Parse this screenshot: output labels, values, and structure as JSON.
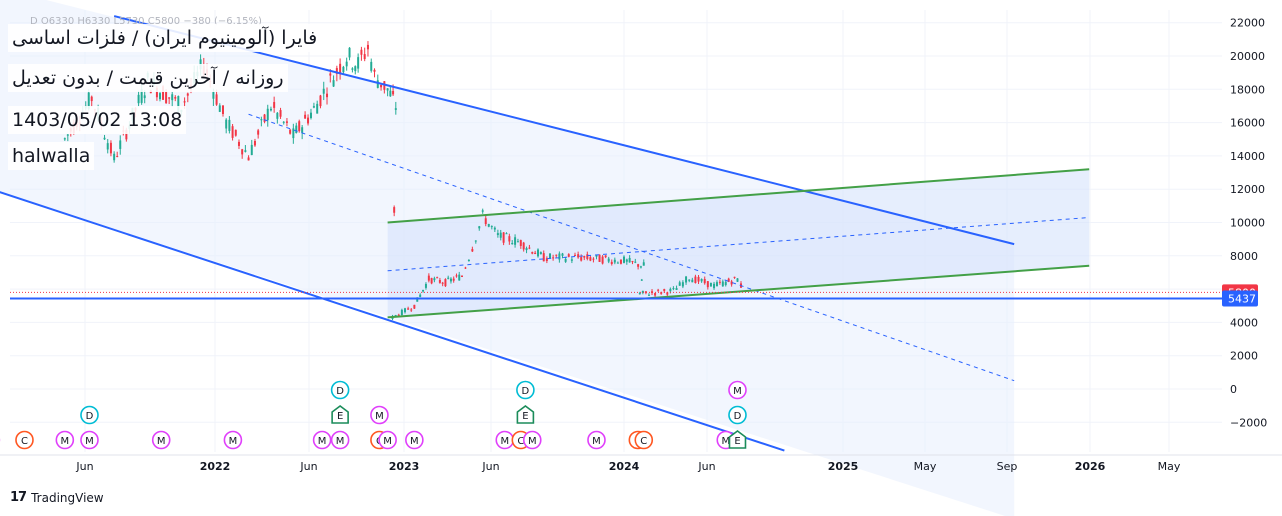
{
  "header": {
    "ohlc_text": "D O6330 H6330 L5730 C5800 −380 (−6.15%)",
    "title": "فایرا (آلومینیوم ایران) / فلزات اساسی",
    "subtitle": "روزانه / آخرین قیمت / بدون تعدیل",
    "datetime": "1403/05/02 13:08",
    "author": "halwalla"
  },
  "footer": {
    "brand": "TradingView"
  },
  "colors": {
    "blue_channel": "#2962ff",
    "green_channel": "#43a047",
    "channel_fill": "#e8eefd",
    "up": "#22ab94",
    "down": "#f23645",
    "price_label": "#f23645",
    "line_label": "#2962ff"
  },
  "chart_data": {
    "type": "candlestick",
    "y_axis": {
      "ticks": [
        22000,
        20000,
        18000,
        16000,
        14000,
        12000,
        10000,
        8000,
        6000,
        4000,
        2000,
        0,
        -2000
      ],
      "range": [
        -3700,
        22500
      ]
    },
    "x_axis": {
      "ticks": [
        "Jun",
        "2022",
        "Jun",
        "2023",
        "Jun",
        "2024",
        "Jun",
        "2025",
        "May",
        "Sep",
        "2026",
        "May"
      ]
    },
    "price_labels": [
      {
        "value": 5800,
        "label": "5800",
        "kind": "last-price"
      },
      {
        "value": 5437,
        "label": "5437",
        "kind": "horizontal-line"
      }
    ],
    "price_path": [
      {
        "t": 2021.33,
        "p": 15000
      },
      {
        "t": 2021.45,
        "p": 17500
      },
      {
        "t": 2021.55,
        "p": 13800
      },
      {
        "t": 2021.7,
        "p": 18500
      },
      {
        "t": 2021.85,
        "p": 17000
      },
      {
        "t": 2021.95,
        "p": 19500
      },
      {
        "t": 2022.05,
        "p": 16000
      },
      {
        "t": 2022.15,
        "p": 14000
      },
      {
        "t": 2022.25,
        "p": 17000
      },
      {
        "t": 2022.35,
        "p": 15200
      },
      {
        "t": 2022.45,
        "p": 16800
      },
      {
        "t": 2022.55,
        "p": 18500
      },
      {
        "t": 2022.65,
        "p": 20000
      },
      {
        "t": 2022.72,
        "p": 19500
      },
      {
        "t": 2022.78,
        "p": 20500
      },
      {
        "t": 2022.82,
        "p": 18800
      },
      {
        "t": 2022.9,
        "p": 18000
      },
      {
        "t": 2022.95,
        "p": 17000
      },
      {
        "t": 2022.93,
        "p": 4300
      },
      {
        "t": 2023.05,
        "p": 5000
      },
      {
        "t": 2023.12,
        "p": 6600
      },
      {
        "t": 2023.2,
        "p": 6400
      },
      {
        "t": 2023.28,
        "p": 6800
      },
      {
        "t": 2023.33,
        "p": 8500
      },
      {
        "t": 2023.38,
        "p": 10400
      },
      {
        "t": 2023.45,
        "p": 9200
      },
      {
        "t": 2023.55,
        "p": 8800
      },
      {
        "t": 2023.65,
        "p": 7900
      },
      {
        "t": 2023.8,
        "p": 7900
      },
      {
        "t": 2024.0,
        "p": 7700
      },
      {
        "t": 2024.1,
        "p": 7400
      },
      {
        "t": 2024.08,
        "p": 5700
      },
      {
        "t": 2024.25,
        "p": 5900
      },
      {
        "t": 2024.33,
        "p": 6700
      },
      {
        "t": 2024.45,
        "p": 6200
      },
      {
        "t": 2024.55,
        "p": 6600
      },
      {
        "t": 2024.58,
        "p": 5800
      }
    ],
    "drawings": [
      {
        "name": "upper-blue-channel-line",
        "color": "blue",
        "from": {
          "t": 2021.55,
          "p": 22400
        },
        "to": {
          "t": 2025.73,
          "p": 8700
        }
      },
      {
        "name": "lower-blue-channel-line",
        "color": "blue",
        "from": {
          "t": 2021.0,
          "p": 12000
        },
        "to": {
          "t": 2024.75,
          "p": -3700
        }
      },
      {
        "name": "blue-channel-midline",
        "color": "blue",
        "dashed": true,
        "from": {
          "t": 2022.15,
          "p": 16500
        },
        "to": {
          "t": 2025.73,
          "p": 500
        }
      },
      {
        "name": "upper-green-channel-line",
        "color": "green",
        "from": {
          "t": 2022.9,
          "p": 10000
        },
        "to": {
          "t": 2026.05,
          "p": 13200
        }
      },
      {
        "name": "lower-green-channel-line",
        "color": "green",
        "from": {
          "t": 2022.9,
          "p": 4300
        },
        "to": {
          "t": 2026.05,
          "p": 7400
        }
      },
      {
        "name": "green-channel-midline",
        "color": "blue",
        "dashed": true,
        "from": {
          "t": 2022.9,
          "p": 7100
        },
        "to": {
          "t": 2026.05,
          "p": 10300
        }
      },
      {
        "name": "horizontal-support-line",
        "color": "blue",
        "value": 5437
      }
    ],
    "event_markers": [
      {
        "label": "M",
        "color": "#e040fb",
        "t": 2021.0,
        "row": 0
      },
      {
        "label": "C",
        "color": "#ff5722",
        "t": 2021.15,
        "row": 0
      },
      {
        "label": "M",
        "color": "#e040fb",
        "t": 2021.33,
        "row": 0
      },
      {
        "label": "M",
        "color": "#e040fb",
        "t": 2021.44,
        "row": 0
      },
      {
        "label": "D",
        "color": "#00bcd4",
        "t": 2021.44,
        "row": 1
      },
      {
        "label": "M",
        "color": "#e040fb",
        "t": 2021.76,
        "row": 0
      },
      {
        "label": "M",
        "color": "#e040fb",
        "t": 2022.08,
        "row": 0
      },
      {
        "label": "M",
        "color": "#e040fb",
        "t": 2022.5,
        "row": 0
      },
      {
        "label": "M",
        "color": "#e040fb",
        "t": 2022.61,
        "row": 0
      },
      {
        "label": "E",
        "color": "#1b8c5a",
        "t": 2022.61,
        "row": 1
      },
      {
        "label": "D",
        "color": "#00bcd4",
        "t": 2022.61,
        "row": 2
      },
      {
        "label": "C",
        "color": "#ff5722",
        "t": 2022.85,
        "row": 0
      },
      {
        "label": "M",
        "color": "#e040fb",
        "t": 2022.9,
        "row": 0
      },
      {
        "label": "M",
        "color": "#e040fb",
        "t": 2022.85,
        "row": 1
      },
      {
        "label": "M",
        "color": "#e040fb",
        "t": 2023.05,
        "row": 0
      },
      {
        "label": "M",
        "color": "#e040fb",
        "t": 2023.48,
        "row": 0
      },
      {
        "label": "C",
        "color": "#ff5722",
        "t": 2023.55,
        "row": 0
      },
      {
        "label": "M",
        "color": "#e040fb",
        "t": 2023.6,
        "row": 0
      },
      {
        "label": "E",
        "color": "#1b8c5a",
        "t": 2023.57,
        "row": 1
      },
      {
        "label": "D",
        "color": "#00bcd4",
        "t": 2023.57,
        "row": 2
      },
      {
        "label": "M",
        "color": "#e040fb",
        "t": 2023.88,
        "row": 0
      },
      {
        "label": "C",
        "color": "#ff5722",
        "t": 2024.07,
        "row": 0
      },
      {
        "label": "C",
        "color": "#ff5722",
        "t": 2024.1,
        "row": 0
      },
      {
        "label": "M",
        "color": "#e040fb",
        "t": 2024.5,
        "row": 0
      },
      {
        "label": "E",
        "color": "#1b8c5a",
        "t": 2024.55,
        "row": 0
      },
      {
        "label": "D",
        "color": "#00bcd4",
        "t": 2024.55,
        "row": 1
      },
      {
        "label": "M",
        "color": "#e040fb",
        "t": 2024.55,
        "row": 2
      }
    ]
  }
}
